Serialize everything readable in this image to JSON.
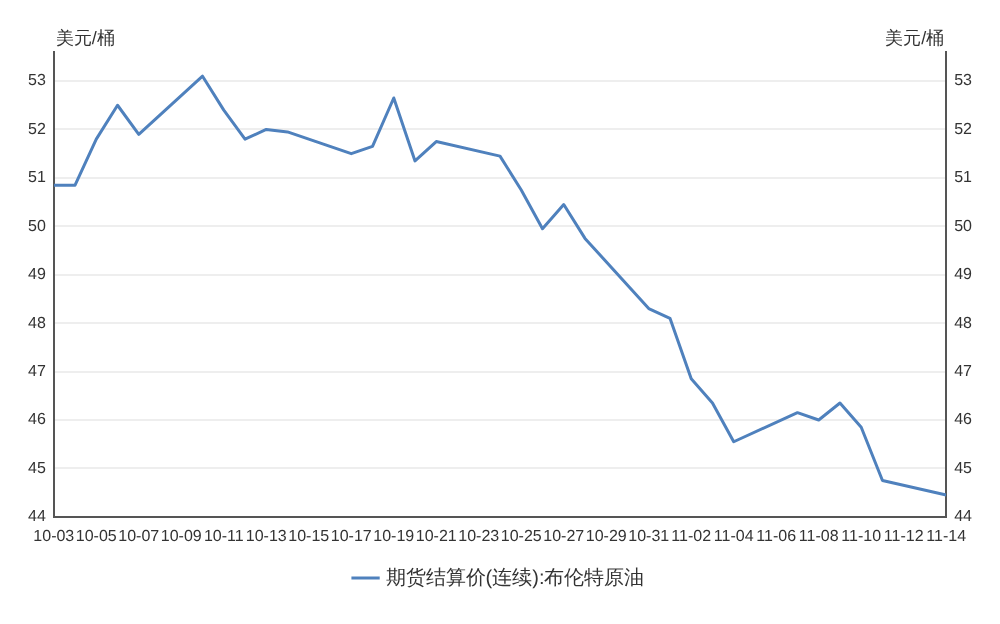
{
  "chart_data": {
    "type": "line",
    "ylabel": "美元/桶",
    "y2label": "美元/桶",
    "x": [
      "--10-03",
      "--10-04",
      "--10-05",
      "--10-06",
      "--10-07",
      "--10-10",
      "--10-11",
      "--10-12",
      "--10-13",
      "--10-14",
      "--10-17",
      "--10-18",
      "--10-19",
      "--10-20",
      "--10-21",
      "--10-24",
      "--10-25",
      "--10-26",
      "--10-27",
      "--10-28",
      "--10-31",
      "--11-01",
      "--11-02",
      "--11-03",
      "--11-04",
      "--11-07",
      "--11-08",
      "--11-09",
      "--11-10",
      "--11-11",
      "--11-14"
    ],
    "series": [
      {
        "name": "期货结算价(连续):布伦特原油",
        "color": "#4f81bd",
        "values": [
          50.85,
          50.85,
          51.8,
          52.5,
          51.9,
          53.1,
          52.4,
          51.8,
          52.0,
          51.95,
          51.5,
          51.65,
          52.65,
          51.35,
          51.75,
          51.45,
          50.75,
          49.95,
          50.45,
          49.75,
          48.3,
          48.1,
          46.85,
          46.35,
          45.55,
          46.15,
          46.0,
          46.35,
          45.85,
          44.75,
          44.45
        ]
      }
    ],
    "xlim": [
      "--10-03",
      "--11-14"
    ],
    "xticks": [
      {
        "value": "--10-03",
        "label": "10-03"
      },
      {
        "value": "--10-05",
        "label": "10-05"
      },
      {
        "value": "--10-07",
        "label": "10-07"
      },
      {
        "value": "--10-09",
        "label": "10-09"
      },
      {
        "value": "--10-11",
        "label": "10-11"
      },
      {
        "value": "--10-13",
        "label": "10-13"
      },
      {
        "value": "--10-15",
        "label": "10-15"
      },
      {
        "value": "--10-17",
        "label": "10-17"
      },
      {
        "value": "--10-19",
        "label": "10-19"
      },
      {
        "value": "--10-21",
        "label": "10-21"
      },
      {
        "value": "--10-23",
        "label": "10-23"
      },
      {
        "value": "--10-25",
        "label": "10-25"
      },
      {
        "value": "--10-27",
        "label": "10-27"
      },
      {
        "value": "--10-29",
        "label": "10-29"
      },
      {
        "value": "--10-31",
        "label": "10-31"
      },
      {
        "value": "--11-02",
        "label": "11-02"
      },
      {
        "value": "--11-04",
        "label": "11-04"
      },
      {
        "value": "--11-06",
        "label": "11-06"
      },
      {
        "value": "--11-08",
        "label": "11-08"
      },
      {
        "value": "--11-10",
        "label": "11-10"
      },
      {
        "value": "--11-12",
        "label": "11-12"
      },
      {
        "value": "--11-14",
        "label": "11-14"
      }
    ],
    "ylim": [
      44,
      53.6
    ],
    "yticks": [
      44,
      45,
      46,
      47,
      48,
      49,
      50,
      51,
      52,
      53
    ],
    "y2lim": [
      44,
      53.6
    ],
    "y2ticks": [
      44,
      45,
      46,
      47,
      48,
      49,
      50,
      51,
      52,
      53
    ],
    "grid": "y",
    "legend": "bottom",
    "marker": "none",
    "line_style": "solid"
  }
}
